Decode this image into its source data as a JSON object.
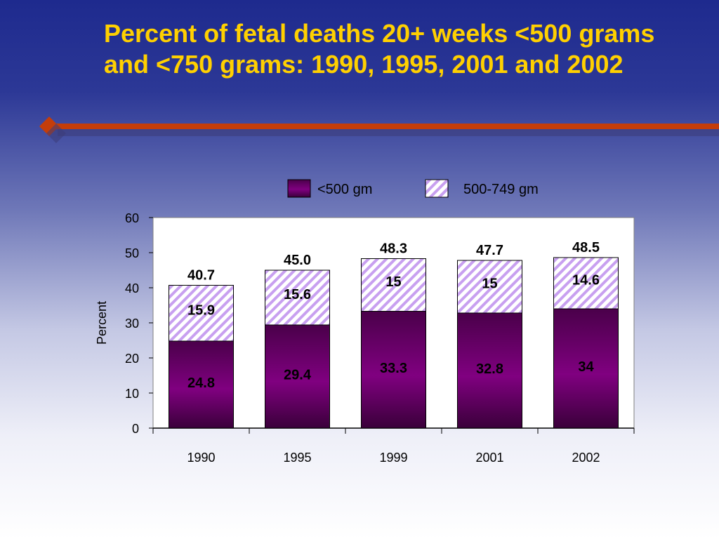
{
  "slide": {
    "title": "Percent of fetal deaths 20+ weeks <500 grams and <750 grams: 1990, 1995, 2001 and 2002"
  },
  "colors": {
    "title": "#ffd000",
    "accent_line": "#c43d0a",
    "bar_dark": "#800080",
    "hatch": "#c8a0f0"
  },
  "chart_data": {
    "type": "bar",
    "stacked": true,
    "categories": [
      "1990",
      "1995",
      "1999",
      "2001",
      "2002"
    ],
    "series": [
      {
        "name": "<500 gm",
        "values": [
          24.8,
          29.4,
          33.3,
          32.8,
          34
        ],
        "labels": [
          "24.8",
          "29.4",
          "33.3",
          "32.8",
          "34"
        ]
      },
      {
        "name": "500-749 gm",
        "values": [
          15.9,
          15.6,
          15,
          15,
          14.6
        ],
        "labels": [
          "15.9",
          "15.6",
          "15",
          "15",
          "14.6"
        ]
      }
    ],
    "totals": [
      "40.7",
      "45.0",
      "48.3",
      "47.7",
      "48.5"
    ],
    "title": "",
    "xlabel": "",
    "ylabel": "Percent",
    "ylim": [
      0,
      60
    ],
    "yticks": [
      0,
      10,
      20,
      30,
      40,
      50,
      60
    ],
    "grid": false,
    "legend_position": "top"
  }
}
